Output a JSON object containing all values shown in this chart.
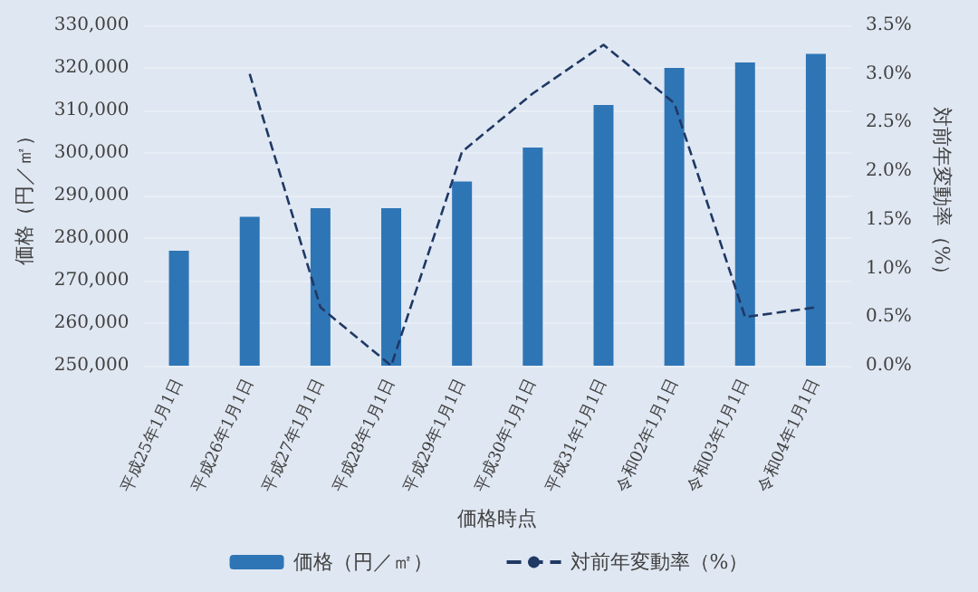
{
  "chart_data": {
    "type": "bar",
    "xlabel": "価格時点",
    "ylabel": "価格（円／㎡）",
    "y2label": "対前年変動率（%）",
    "categories": [
      "平成25年1月1日",
      "平成26年1月1日",
      "平成27年1月1日",
      "平成28年1月1日",
      "平成29年1月1日",
      "平成30年1月1日",
      "平成31年1月1日",
      "令和02年1月1日",
      "令和03年1月1日",
      "令和04年1月1日"
    ],
    "series": [
      {
        "name": "価格（円／㎡）",
        "color": "#2e75b6",
        "values": [
          277000,
          285000,
          287000,
          287000,
          293300,
          301300,
          311300,
          320000,
          321300,
          323300
        ]
      },
      {
        "name": "対前年変動率（%）",
        "type": "line",
        "axis": "y2",
        "color": "#1f3864",
        "line_style": "dashed",
        "marker": "none",
        "values": [
          null,
          3.0,
          0.6,
          0.0,
          2.2,
          2.8,
          3.3,
          2.7,
          0.5,
          0.6
        ]
      }
    ],
    "ylim": [
      250000,
      330000
    ],
    "yticks": [
      {
        "value": 250000,
        "label": "250,000"
      },
      {
        "value": 260000,
        "label": "260,000"
      },
      {
        "value": 270000,
        "label": "270,000"
      },
      {
        "value": 280000,
        "label": "280,000"
      },
      {
        "value": 290000,
        "label": "290,000"
      },
      {
        "value": 300000,
        "label": "300,000"
      },
      {
        "value": 310000,
        "label": "310,000"
      },
      {
        "value": 320000,
        "label": "320,000"
      },
      {
        "value": 330000,
        "label": "330,000"
      }
    ],
    "y2lim": [
      0,
      3.5
    ],
    "y2ticks": [
      {
        "value": 0,
        "label": "0.0%"
      },
      {
        "value": 0.5,
        "label": "0.5%"
      },
      {
        "value": 1,
        "label": "1.0%"
      },
      {
        "value": 1.5,
        "label": "1.5%"
      },
      {
        "value": 2,
        "label": "2.0%"
      },
      {
        "value": 2.5,
        "label": "2.5%"
      },
      {
        "value": 3,
        "label": "3.0%"
      },
      {
        "value": 3.5,
        "label": "3.5%"
      }
    ],
    "grid": "y",
    "legend": "bottom"
  }
}
